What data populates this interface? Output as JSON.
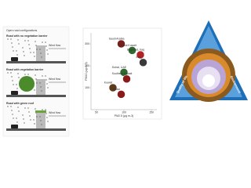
{
  "left": {
    "title": "Open road configurations",
    "rows": [
      {
        "label": "Road with no vegetation barrier",
        "wind": "Wind flow"
      },
      {
        "label": "Road with vegetation barrier",
        "wind": "Wind flow"
      },
      {
        "label": "Road with green roof",
        "wind": "Wind flow"
      }
    ]
  },
  "chart_data": {
    "type": "scatter",
    "xlabel": "PM2.5 (µg m-3)",
    "ylabel": "PM10 (µg m-3)",
    "x": [
      95,
      115,
      130,
      135,
      100,
      105,
      80,
      95
    ],
    "values": [
      300,
      270,
      250,
      215,
      170,
      140,
      100,
      70
    ],
    "point_labels": [
      "Saudi Arabia",
      "Central Kuwait",
      "Baghdad, Iraq",
      "Iraq",
      "Dubai, UAE",
      "Southern Kuwait",
      "Kuwait",
      "Qatar"
    ],
    "colors": [
      "#7a1d1d",
      "#2e6b2e",
      "#b22222",
      "#3a3a3a",
      "#2e6b2e",
      "#8b1a1a",
      "#5a3a1a",
      "#8b1a1a"
    ],
    "xlim": [
      40,
      160
    ],
    "ylim": [
      0,
      350
    ],
    "xticks": [
      50,
      100,
      150
    ],
    "yticks": [
      100,
      200,
      300
    ]
  },
  "right": {
    "labels": [
      "Competitive drivers",
      "Quality of life",
      "Environment"
    ]
  }
}
